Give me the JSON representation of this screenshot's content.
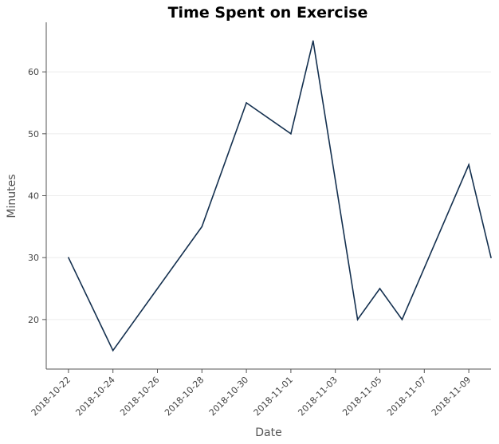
{
  "chart_data": {
    "type": "line",
    "title": "Time Spent on Exercise",
    "xlabel": "Date",
    "ylabel": "Minutes",
    "x_ticks": [
      "2018-10-22",
      "2018-10-24",
      "2018-10-26",
      "2018-10-28",
      "2018-10-30",
      "2018-11-01",
      "2018-11-03",
      "2018-11-05",
      "2018-11-07",
      "2018-11-09"
    ],
    "y_ticks": [
      20,
      30,
      40,
      50,
      60
    ],
    "xlim": [
      "2018-10-21",
      "2018-11-10"
    ],
    "ylim": [
      12,
      68
    ],
    "grid": "horizontal",
    "series": [
      {
        "color": "#14304f",
        "x": [
          "2018-10-22",
          "2018-10-24",
          "2018-10-28",
          "2018-10-30",
          "2018-11-01",
          "2018-11-02",
          "2018-11-04",
          "2018-11-05",
          "2018-11-06",
          "2018-11-09",
          "2018-11-10"
        ],
        "y": [
          30,
          15,
          35,
          55,
          50,
          65,
          20,
          25,
          20,
          45,
          30
        ]
      }
    ]
  }
}
